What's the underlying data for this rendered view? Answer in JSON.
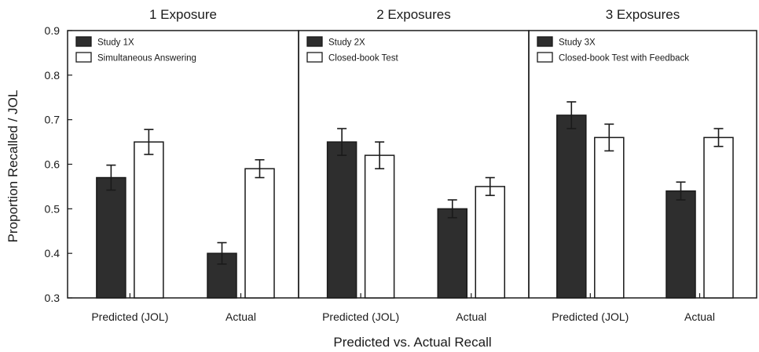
{
  "chart_data": {
    "type": "bar",
    "ylabel": "Proportion Recalled / JOL",
    "xlabel": "Predicted vs. Actual Recall",
    "ylim": [
      0.3,
      0.9
    ],
    "yticks": [
      "0.3",
      "0.4",
      "0.5",
      "0.6",
      "0.7",
      "0.8",
      "0.9"
    ],
    "categories": [
      "Predicted (JOL)",
      "Actual"
    ],
    "colors": {
      "filled": "#2e2e2e",
      "open": "#ffffff",
      "edge": "#1a1a1a"
    },
    "panels": [
      {
        "title": "1 Exposure",
        "legend_position": "top-left",
        "series": [
          {
            "name": "Study 1X",
            "fill": "filled",
            "values": [
              0.57,
              0.4
            ],
            "errors": [
              0.028,
              0.024
            ]
          },
          {
            "name": "Simultaneous Answering",
            "fill": "open",
            "values": [
              0.65,
              0.59
            ],
            "errors": [
              0.028,
              0.02
            ]
          }
        ]
      },
      {
        "title": "2 Exposures",
        "legend_position": "top-left",
        "series": [
          {
            "name": "Study 2X",
            "fill": "filled",
            "values": [
              0.65,
              0.5
            ],
            "errors": [
              0.03,
              0.02
            ]
          },
          {
            "name": "Closed-book Test",
            "fill": "open",
            "values": [
              0.62,
              0.55
            ],
            "errors": [
              0.03,
              0.02
            ]
          }
        ]
      },
      {
        "title": "3 Exposures",
        "legend_position": "top-left",
        "series": [
          {
            "name": "Study 3X",
            "fill": "filled",
            "values": [
              0.71,
              0.54
            ],
            "errors": [
              0.03,
              0.02
            ]
          },
          {
            "name": "Closed-book Test with Feedback",
            "fill": "open",
            "values": [
              0.66,
              0.66
            ],
            "errors": [
              0.03,
              0.02
            ]
          }
        ]
      }
    ]
  }
}
